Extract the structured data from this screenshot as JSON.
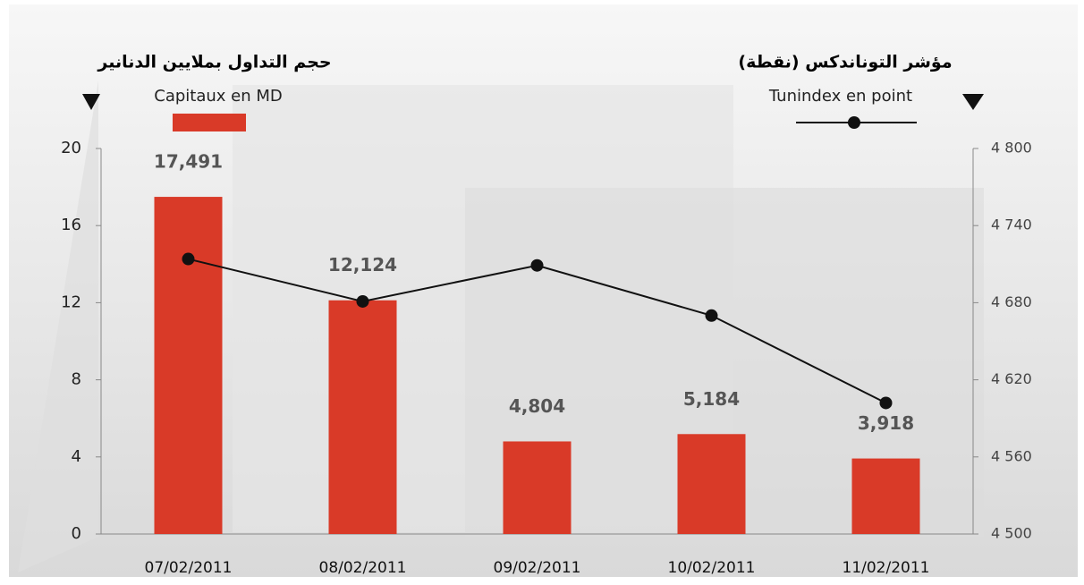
{
  "chart_data": {
    "type": "bar",
    "ylabel": "حجم التداول بملايين الدنانير",
    "y2label": "مؤشر التوناندكس (نقطة)",
    "categories": [
      "07/02/2011",
      "08/02/2011",
      "09/02/2011",
      "10/02/2011",
      "11/02/2011"
    ],
    "series": [
      {
        "name": "Capitaux en MD",
        "type": "bar",
        "color": "#d93a28",
        "values": [
          17.491,
          12.124,
          4.804,
          5.184,
          3.918
        ],
        "value_labels": [
          "17,491",
          "12,124",
          "4,804",
          "5,184",
          "3,918"
        ]
      },
      {
        "name": "Tunindex en point",
        "type": "line",
        "axis": "y2",
        "color": "#111111",
        "values": [
          4714,
          4681,
          4709,
          4670,
          4602
        ]
      }
    ],
    "ylim": [
      0,
      20
    ],
    "yticks": [
      0,
      4,
      8,
      12,
      16,
      20
    ],
    "y2lim": [
      4500,
      4800
    ],
    "y2ticks": [
      {
        "value": 4500,
        "label": "4 500"
      },
      {
        "value": 4560,
        "label": "4 560"
      },
      {
        "value": 4620,
        "label": "4 620"
      },
      {
        "value": 4680,
        "label": "4 680"
      },
      {
        "value": 4740,
        "label": "4 740"
      },
      {
        "value": 4800,
        "label": "4 800"
      }
    ]
  }
}
